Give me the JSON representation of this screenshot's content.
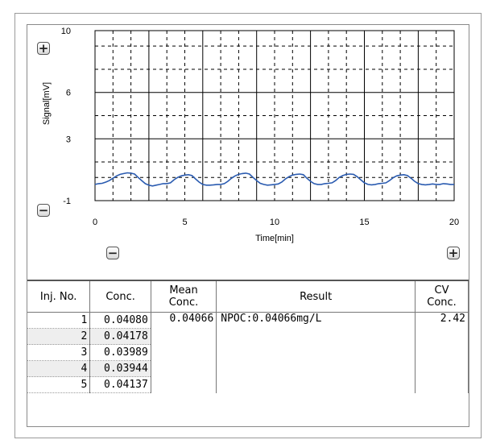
{
  "chart_data": {
    "type": "line",
    "title": "",
    "xlabel": "Time[min]",
    "ylabel": "Signal[mV]",
    "xlim": [
      0,
      20
    ],
    "ylim": [
      -1,
      10
    ],
    "x_ticks": [
      0,
      5,
      10,
      15,
      20
    ],
    "y_ticks": [
      -1,
      3,
      6,
      10
    ],
    "x_tick_labels": [
      "0",
      "5",
      "10",
      "15",
      "20"
    ],
    "y_tick_labels": [
      "-1",
      "3",
      "6",
      "10"
    ],
    "grid": true,
    "line_color": "#2a5bb0",
    "series": [
      {
        "x": [
          0,
          0.2,
          0.4,
          0.6,
          0.8,
          1.0,
          1.2,
          1.4,
          1.6,
          1.8,
          2.0,
          2.2,
          2.4,
          2.6,
          2.8,
          3.0,
          3.2,
          3.4,
          3.6,
          3.8,
          4.0,
          4.2,
          4.4,
          4.6,
          4.8,
          5.0,
          5.2,
          5.4,
          5.6,
          5.8,
          6.0,
          6.2,
          6.4,
          6.6,
          6.8,
          7.0,
          7.2,
          7.4,
          7.6,
          7.8,
          8.0,
          8.2,
          8.4,
          8.6,
          8.8,
          9.0,
          9.2,
          9.4,
          9.6,
          9.8,
          10.0,
          10.2,
          10.4,
          10.6,
          10.8,
          11.0,
          11.2,
          11.4,
          11.6,
          11.8,
          12.0,
          12.2,
          12.4,
          12.6,
          12.8,
          13.0,
          13.2,
          13.4,
          13.6,
          13.8,
          14.0,
          14.2,
          14.4,
          14.6,
          14.8,
          15.0,
          15.2,
          15.4,
          15.6,
          15.8,
          16.0,
          16.2,
          16.4,
          16.6,
          16.8,
          17.0,
          17.2,
          17.4,
          17.6,
          17.8,
          18.0,
          18.2,
          18.4,
          18.6,
          18.8,
          19.0,
          19.2,
          19.4,
          19.6,
          19.8,
          20.0
        ],
        "y": [
          0.05,
          0.1,
          0.12,
          0.2,
          0.3,
          0.45,
          0.6,
          0.7,
          0.75,
          0.8,
          0.78,
          0.72,
          0.5,
          0.3,
          0.1,
          0.0,
          -0.05,
          0.0,
          0.05,
          0.1,
          0.1,
          0.15,
          0.35,
          0.5,
          0.6,
          0.65,
          0.68,
          0.62,
          0.4,
          0.2,
          0.05,
          0.0,
          0.0,
          0.02,
          0.05,
          0.05,
          0.1,
          0.25,
          0.45,
          0.6,
          0.7,
          0.75,
          0.78,
          0.72,
          0.5,
          0.3,
          0.12,
          0.05,
          0.0,
          0.02,
          0.05,
          0.08,
          0.2,
          0.4,
          0.55,
          0.65,
          0.7,
          0.72,
          0.68,
          0.45,
          0.25,
          0.1,
          0.05,
          0.05,
          0.1,
          0.12,
          0.15,
          0.3,
          0.5,
          0.62,
          0.7,
          0.72,
          0.7,
          0.55,
          0.35,
          0.15,
          0.05,
          0.02,
          0.05,
          0.1,
          0.12,
          0.15,
          0.3,
          0.48,
          0.6,
          0.65,
          0.68,
          0.62,
          0.45,
          0.25,
          0.1,
          0.05,
          0.02,
          0.05,
          0.08,
          0.05,
          0.05,
          0.1,
          0.08,
          0.05,
          0.05
        ]
      }
    ]
  },
  "table": {
    "headers": {
      "inj": "Inj. No.",
      "conc": "Conc.",
      "mean_l1": "Mean",
      "mean_l2": "Conc.",
      "result": "Result",
      "cv_l1": "CV",
      "cv_l2": "Conc."
    },
    "rows": [
      {
        "inj": "1",
        "conc": "0.04080"
      },
      {
        "inj": "2",
        "conc": "0.04178"
      },
      {
        "inj": "3",
        "conc": "0.03989"
      },
      {
        "inj": "4",
        "conc": "0.03944"
      },
      {
        "inj": "5",
        "conc": "0.04137"
      }
    ],
    "mean_conc": "0.04066",
    "result": "NPOC:0.04066mg/L",
    "cv_conc": "2.42"
  },
  "icons": {
    "zoom_in": "plus-icon",
    "zoom_out": "minus-icon"
  }
}
